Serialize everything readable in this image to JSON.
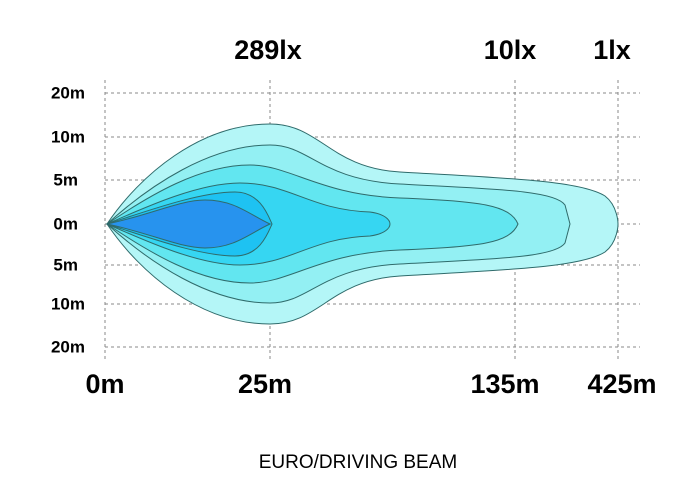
{
  "top_labels": [
    "289lx",
    "10lx",
    "1lx"
  ],
  "y_labels": [
    "20m",
    "10m",
    "5m",
    "0m",
    "5m",
    "10m",
    "20m"
  ],
  "x_labels": [
    "0m",
    "25m",
    "135m",
    "425m"
  ],
  "caption": "EURO/DRIVING BEAM"
}
